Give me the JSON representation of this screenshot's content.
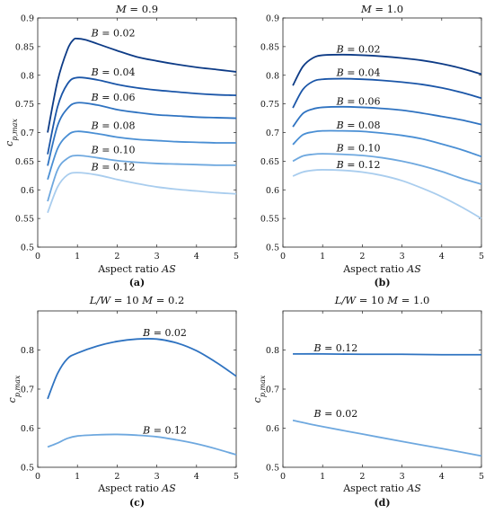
{
  "chart_data": [
    {
      "type": "line",
      "panel_label": "(a)",
      "title": "M = 0.9",
      "xlabel": "Aspect ratio AS",
      "ylabel": "c_p,max",
      "xlim": [
        0,
        5
      ],
      "ylim": [
        0.5,
        0.9
      ],
      "xticks": [
        "0",
        "1",
        "2",
        "3",
        "4",
        "5"
      ],
      "yticks": [
        "0.5",
        "0.55",
        "0.6",
        "0.65",
        "0.7",
        "0.75",
        "0.8",
        "0.85",
        "0.9"
      ],
      "grid": false,
      "series": [
        {
          "name": "B = 0.02",
          "color": "#0d3b86",
          "x": [
            0.25,
            0.5,
            0.75,
            0.9,
            1.0,
            1.2,
            1.5,
            2.0,
            2.5,
            3.0,
            3.5,
            4.0,
            4.5,
            5.0
          ],
          "y": [
            0.7,
            0.79,
            0.845,
            0.862,
            0.864,
            0.862,
            0.855,
            0.843,
            0.832,
            0.825,
            0.819,
            0.814,
            0.81,
            0.806
          ]
        },
        {
          "name": "B = 0.04",
          "color": "#1b56a8",
          "x": [
            0.25,
            0.5,
            0.75,
            1.0,
            1.5,
            2.0,
            2.5,
            3.0,
            3.5,
            4.0,
            4.5,
            5.0
          ],
          "y": [
            0.662,
            0.745,
            0.785,
            0.796,
            0.792,
            0.784,
            0.778,
            0.774,
            0.771,
            0.768,
            0.766,
            0.765
          ]
        },
        {
          "name": "B = 0.06",
          "color": "#2f73c1",
          "x": [
            0.25,
            0.5,
            0.75,
            1.0,
            1.5,
            2.0,
            2.5,
            3.0,
            3.5,
            4.0,
            4.5,
            5.0
          ],
          "y": [
            0.642,
            0.712,
            0.742,
            0.752,
            0.748,
            0.74,
            0.735,
            0.731,
            0.729,
            0.727,
            0.726,
            0.725
          ]
        },
        {
          "name": "B = 0.08",
          "color": "#4a8fd4",
          "x": [
            0.25,
            0.5,
            0.75,
            1.0,
            1.5,
            2.0,
            2.5,
            3.0,
            3.5,
            4.0,
            4.5,
            5.0
          ],
          "y": [
            0.618,
            0.672,
            0.695,
            0.702,
            0.698,
            0.692,
            0.688,
            0.686,
            0.684,
            0.683,
            0.682,
            0.682
          ]
        },
        {
          "name": "B = 0.10",
          "color": "#6ea8df",
          "x": [
            0.25,
            0.5,
            0.75,
            1.0,
            1.5,
            2.0,
            2.5,
            3.0,
            3.5,
            4.0,
            4.5,
            5.0
          ],
          "y": [
            0.58,
            0.635,
            0.655,
            0.66,
            0.656,
            0.651,
            0.648,
            0.646,
            0.645,
            0.644,
            0.643,
            0.643
          ]
        },
        {
          "name": "B = 0.12",
          "color": "#a9cdee",
          "x": [
            0.25,
            0.5,
            0.75,
            1.0,
            1.5,
            2.0,
            2.5,
            3.0,
            3.5,
            4.0,
            4.5,
            5.0
          ],
          "y": [
            0.56,
            0.605,
            0.626,
            0.63,
            0.626,
            0.618,
            0.611,
            0.605,
            0.601,
            0.598,
            0.595,
            0.593
          ]
        }
      ],
      "labels_at": [
        [
          1.35,
          0.868
        ],
        [
          1.35,
          0.8
        ],
        [
          1.35,
          0.756
        ],
        [
          1.35,
          0.706
        ],
        [
          1.35,
          0.664
        ],
        [
          1.35,
          0.634
        ]
      ]
    },
    {
      "type": "line",
      "panel_label": "(b)",
      "title": "M = 1.0",
      "xlabel": "Aspect ratio AS",
      "ylabel": "",
      "xlim": [
        0,
        5
      ],
      "ylim": [
        0.5,
        0.9
      ],
      "xticks": [
        "0",
        "1",
        "2",
        "3",
        "4",
        "5"
      ],
      "yticks": [
        "0.5",
        "0.55",
        "0.6",
        "0.65",
        "0.7",
        "0.75",
        "0.8",
        "0.85",
        "0.9"
      ],
      "grid": false,
      "series": [
        {
          "name": "B = 0.02",
          "color": "#0d3b86",
          "x": [
            0.25,
            0.5,
            0.75,
            1.0,
            1.5,
            2.0,
            2.5,
            3.0,
            3.5,
            4.0,
            4.5,
            5.0
          ],
          "y": [
            0.782,
            0.815,
            0.83,
            0.835,
            0.836,
            0.835,
            0.833,
            0.83,
            0.826,
            0.82,
            0.812,
            0.802
          ]
        },
        {
          "name": "B = 0.04",
          "color": "#1b56a8",
          "x": [
            0.25,
            0.5,
            0.75,
            1.0,
            1.5,
            2.0,
            2.5,
            3.0,
            3.5,
            4.0,
            4.5,
            5.0
          ],
          "y": [
            0.743,
            0.775,
            0.789,
            0.793,
            0.794,
            0.793,
            0.791,
            0.788,
            0.784,
            0.778,
            0.77,
            0.76
          ]
        },
        {
          "name": "B = 0.06",
          "color": "#2f73c1",
          "x": [
            0.25,
            0.5,
            0.75,
            1.0,
            1.5,
            2.0,
            2.5,
            3.0,
            3.5,
            4.0,
            4.5,
            5.0
          ],
          "y": [
            0.71,
            0.733,
            0.741,
            0.744,
            0.745,
            0.744,
            0.742,
            0.739,
            0.734,
            0.728,
            0.722,
            0.714
          ]
        },
        {
          "name": "B = 0.08",
          "color": "#4a8fd4",
          "x": [
            0.25,
            0.5,
            0.75,
            1.0,
            1.5,
            2.0,
            2.5,
            3.0,
            3.5,
            4.0,
            4.5,
            5.0
          ],
          "y": [
            0.679,
            0.696,
            0.701,
            0.703,
            0.703,
            0.702,
            0.699,
            0.695,
            0.689,
            0.68,
            0.67,
            0.658
          ]
        },
        {
          "name": "B = 0.10",
          "color": "#6ea8df",
          "x": [
            0.25,
            0.5,
            0.75,
            1.0,
            1.5,
            2.0,
            2.5,
            3.0,
            3.5,
            4.0,
            4.5,
            5.0
          ],
          "y": [
            0.65,
            0.659,
            0.662,
            0.663,
            0.662,
            0.66,
            0.656,
            0.65,
            0.642,
            0.632,
            0.62,
            0.61
          ]
        },
        {
          "name": "B = 0.12",
          "color": "#a9cdee",
          "x": [
            0.25,
            0.5,
            0.75,
            1.0,
            1.5,
            2.0,
            2.5,
            3.0,
            3.5,
            4.0,
            4.5,
            5.0
          ],
          "y": [
            0.624,
            0.631,
            0.634,
            0.635,
            0.634,
            0.631,
            0.625,
            0.616,
            0.603,
            0.588,
            0.57,
            0.55
          ]
        }
      ],
      "labels_at": [
        [
          1.35,
          0.84
        ],
        [
          1.35,
          0.799
        ],
        [
          1.35,
          0.749
        ],
        [
          1.35,
          0.707
        ],
        [
          1.35,
          0.667
        ],
        [
          1.35,
          0.638
        ]
      ]
    },
    {
      "type": "line",
      "panel_label": "(c)",
      "title": "L/W = 10 M = 0.2",
      "xlabel": "Aspect ratio AS",
      "ylabel": "c_p,max",
      "xlim": [
        0,
        5
      ],
      "ylim": [
        0.5,
        0.9
      ],
      "xticks": [
        "0",
        "1",
        "2",
        "3",
        "4",
        "5"
      ],
      "yticks": [
        "0.5",
        "0.6",
        "0.7",
        "0.8"
      ],
      "grid": false,
      "series": [
        {
          "name": "B = 0.02",
          "color": "#2f73c1",
          "x": [
            0.25,
            0.5,
            0.75,
            1.0,
            1.5,
            2.0,
            2.5,
            3.0,
            3.5,
            4.0,
            4.5,
            5.0
          ],
          "y": [
            0.675,
            0.74,
            0.778,
            0.792,
            0.81,
            0.822,
            0.828,
            0.828,
            0.818,
            0.798,
            0.768,
            0.733
          ]
        },
        {
          "name": "B = 0.12",
          "color": "#6ea8df",
          "x": [
            0.25,
            0.5,
            0.75,
            1.0,
            1.5,
            2.0,
            2.5,
            3.0,
            3.5,
            4.0,
            4.5,
            5.0
          ],
          "y": [
            0.552,
            0.562,
            0.574,
            0.58,
            0.583,
            0.584,
            0.582,
            0.578,
            0.57,
            0.56,
            0.547,
            0.532
          ]
        }
      ],
      "labels_at": [
        [
          2.65,
          0.836
        ],
        [
          2.65,
          0.586
        ]
      ]
    },
    {
      "type": "line",
      "panel_label": "(d)",
      "title": "L/W = 10 M = 1.0",
      "xlabel": "Aspect ratio AS",
      "ylabel": "c_p,max",
      "xlim": [
        0,
        5
      ],
      "ylim": [
        0.5,
        0.9
      ],
      "xticks": [
        "0",
        "1",
        "2",
        "3",
        "4",
        "5"
      ],
      "yticks": [
        "0.5",
        "0.6",
        "0.7",
        "0.8"
      ],
      "grid": false,
      "series": [
        {
          "name": "B = 0.12",
          "color": "#2f73c1",
          "x": [
            0.25,
            1.0,
            2.0,
            3.0,
            4.0,
            5.0
          ],
          "y": [
            0.79,
            0.79,
            0.789,
            0.789,
            0.788,
            0.788
          ]
        },
        {
          "name": "B = 0.02",
          "color": "#6ea8df",
          "x": [
            0.25,
            1.0,
            2.0,
            3.0,
            4.0,
            5.0
          ],
          "y": [
            0.62,
            0.604,
            0.585,
            0.566,
            0.548,
            0.529
          ]
        }
      ],
      "labels_at": [
        [
          0.78,
          0.797
        ],
        [
          0.78,
          0.629
        ]
      ]
    }
  ]
}
